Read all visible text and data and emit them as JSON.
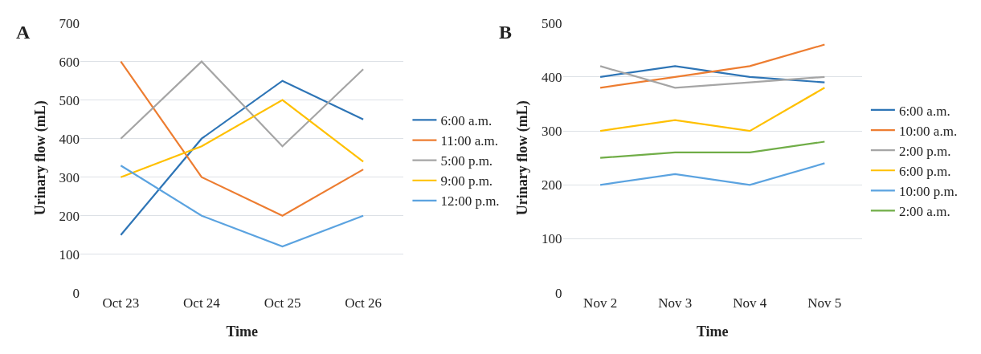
{
  "chart_data": [
    {
      "type": "line",
      "title": "A",
      "xlabel": "Time",
      "ylabel": "Urinary flow (mL)",
      "categories": [
        "Oct 23",
        "Oct 24",
        "Oct 25",
        "Oct 26"
      ],
      "ylim": [
        0,
        700
      ],
      "yticks": [
        0,
        100,
        200,
        300,
        400,
        500,
        600,
        700
      ],
      "grid": "y",
      "legend": "right",
      "marker": "none",
      "line_style": "solid",
      "series": [
        {
          "name": "6:00 a.m.",
          "color": "#2e75b6",
          "values": [
            150,
            400,
            550,
            450
          ]
        },
        {
          "name": "11:00 a.m.",
          "color": "#ed7d31",
          "values": [
            600,
            300,
            200,
            320
          ]
        },
        {
          "name": "5:00 p.m.",
          "color": "#a5a5a5",
          "values": [
            400,
            600,
            380,
            580
          ]
        },
        {
          "name": "9:00 p.m.",
          "color": "#ffc000",
          "values": [
            300,
            380,
            500,
            340
          ]
        },
        {
          "name": "12:00 p.m.",
          "color": "#5ba3e0",
          "values": [
            330,
            200,
            120,
            200
          ]
        }
      ]
    },
    {
      "type": "line",
      "title": "B",
      "xlabel": "Time",
      "ylabel": "Urinary flow (mL)",
      "categories": [
        "Nov 2",
        "Nov 3",
        "Nov 4",
        "Nov 5"
      ],
      "ylim": [
        0,
        500
      ],
      "yticks": [
        0,
        100,
        200,
        300,
        400,
        500
      ],
      "grid": "y",
      "legend": "right",
      "marker": "none",
      "line_style": "solid",
      "series": [
        {
          "name": "6:00 a.m.",
          "color": "#2e75b6",
          "values": [
            400,
            420,
            400,
            390
          ]
        },
        {
          "name": "10:00 a.m.",
          "color": "#ed7d31",
          "values": [
            380,
            400,
            420,
            460
          ]
        },
        {
          "name": "2:00 p.m.",
          "color": "#a5a5a5",
          "values": [
            420,
            380,
            390,
            400
          ]
        },
        {
          "name": "6:00 p.m.",
          "color": "#ffc000",
          "values": [
            300,
            320,
            300,
            380
          ]
        },
        {
          "name": "10:00 p.m.",
          "color": "#5ba3e0",
          "values": [
            200,
            220,
            200,
            240
          ]
        },
        {
          "name": "2:00 a.m.",
          "color": "#70ad47",
          "values": [
            250,
            260,
            260,
            280
          ]
        }
      ]
    }
  ]
}
